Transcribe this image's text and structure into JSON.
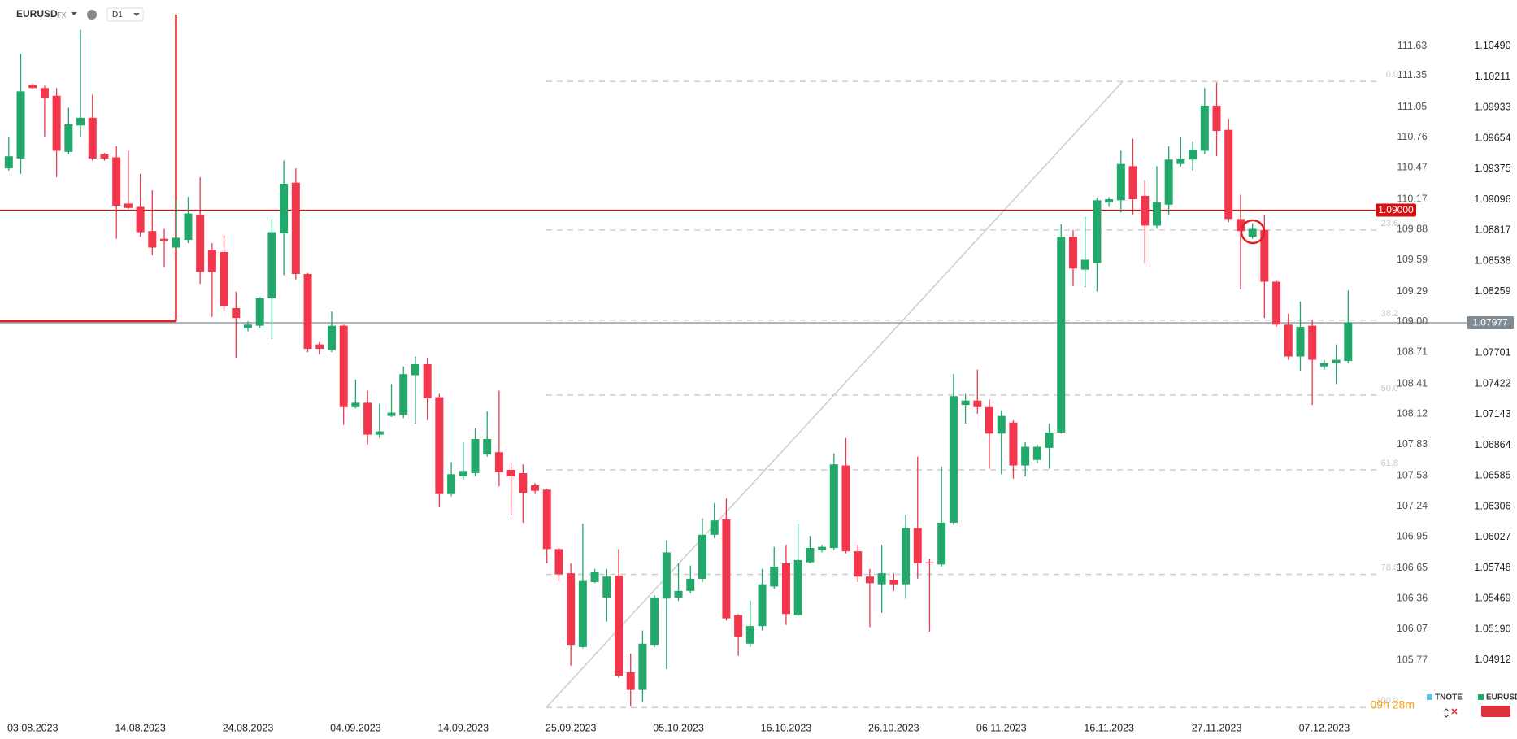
{
  "chart_data": {
    "type": "candlestick",
    "symbol": "EURUSD",
    "market": "FX",
    "interval": "D1",
    "timer": "09h 28m",
    "up_color": "#22a86b",
    "down_color": "#f2364b",
    "categories": [
      null,
      null,
      "03.08.2023",
      null,
      null,
      null,
      null,
      null,
      null,
      null,
      null,
      "14.08.2023",
      null,
      null,
      null,
      null,
      null,
      null,
      null,
      null,
      "24.08.2023",
      null,
      null,
      null,
      null,
      null,
      null,
      null,
      null,
      "04.09.2023",
      null,
      null,
      null,
      null,
      null,
      null,
      null,
      null,
      "14.09.2023",
      null,
      null,
      null,
      null,
      null,
      null,
      null,
      null,
      "25.09.2023",
      null,
      null,
      null,
      null,
      null,
      null,
      null,
      null,
      "05.10.2023",
      null,
      null,
      null,
      null,
      null,
      null,
      null,
      null,
      "16.10.2023",
      null,
      null,
      null,
      null,
      null,
      null,
      null,
      null,
      "26.10.2023",
      null,
      null,
      null,
      null,
      null,
      null,
      null,
      null,
      "06.11.2023",
      null,
      null,
      null,
      null,
      null,
      null,
      null,
      null,
      "16.11.2023",
      null,
      null,
      null,
      null,
      null,
      null,
      null,
      null,
      "27.11.2023",
      null,
      null,
      null,
      null,
      null,
      null,
      null,
      null,
      "07.12.2023",
      null,
      null
    ],
    "open": [
      1.0938,
      1.0947,
      1.1014,
      1.1011,
      1.1004,
      1.0953,
      1.0977,
      1.0984,
      1.0951,
      1.0948,
      1.0906,
      1.0903,
      1.0881,
      1.0874,
      1.0866,
      1.0873,
      1.0896,
      1.0864,
      1.0862,
      1.0811,
      1.0793,
      1.0795,
      1.082,
      1.0879,
      1.0925,
      1.0842,
      1.0778,
      1.0773,
      1.0795,
      1.0721,
      1.0725,
      1.0696,
      1.0713,
      1.0714,
      1.075,
      1.076,
      1.073,
      1.0642,
      1.0658,
      1.0661,
      1.0678,
      1.068,
      1.0664,
      1.0661,
      1.065,
      1.0646,
      1.0592,
      1.057,
      1.0503,
      1.0562,
      1.0548,
      1.0568,
      1.048,
      1.0464,
      1.0505,
      1.0547,
      1.0548,
      1.0554,
      1.0565,
      1.0605,
      1.0619,
      1.0532,
      1.0506,
      1.0522,
      1.0558,
      1.0579,
      1.0532,
      1.058,
      1.0591,
      1.0593,
      1.0668,
      1.059,
      1.0567,
      1.056,
      1.0564,
      1.056,
      1.0611,
      1.058,
      1.0578,
      1.0616,
      1.0723,
      1.0727,
      1.0721,
      1.0697,
      1.0707,
      1.0668,
      1.0673,
      1.0684,
      1.0698,
      1.0876,
      1.0846,
      1.0852,
      1.0907,
      1.0909,
      1.094,
      1.0913,
      1.0886,
      1.0905,
      1.0942,
      1.0946,
      1.0954,
      1.0995,
      1.0973,
      1.0892,
      1.0876,
      1.0882,
      1.0835,
      1.0796,
      1.0767,
      1.0795,
      1.0758,
      1.0761,
      1.0763
    ],
    "high": [
      1.0967,
      1.1042,
      1.1015,
      1.1013,
      1.1011,
      1.0993,
      1.1064,
      1.1005,
      1.0952,
      1.0958,
      1.0954,
      1.0933,
      1.0918,
      1.0883,
      1.0909,
      1.0912,
      1.093,
      1.087,
      1.0877,
      1.0826,
      1.0799,
      1.0821,
      1.0892,
      1.0945,
      1.0938,
      1.0843,
      1.078,
      1.0808,
      1.0796,
      1.0746,
      1.0736,
      1.0724,
      1.0742,
      1.0758,
      1.0767,
      1.0766,
      1.0733,
      1.0671,
      1.0689,
      1.0702,
      1.0717,
      1.0736,
      1.067,
      1.0669,
      1.0652,
      1.0647,
      1.0593,
      1.0579,
      1.0615,
      1.0574,
      1.0574,
      1.0592,
      1.0497,
      1.0518,
      1.055,
      1.06,
      1.0579,
      1.0577,
      1.062,
      1.0634,
      1.0638,
      1.0533,
      1.0545,
      1.0574,
      1.0594,
      1.0596,
      1.0615,
      1.0604,
      1.0596,
      1.0679,
      1.0693,
      1.0596,
      1.0574,
      1.0596,
      1.057,
      1.0623,
      1.0676,
      1.0583,
      1.0667,
      1.0751,
      1.0733,
      1.0755,
      1.0728,
      1.0718,
      1.0709,
      1.0689,
      1.0687,
      1.0706,
      1.0887,
      1.0882,
      1.0894,
      1.0911,
      1.0912,
      1.0954,
      1.0965,
      1.0927,
      1.094,
      1.0958,
      1.0967,
      1.0962,
      1.1011,
      1.1016,
      1.0983,
      1.0914,
      1.0888,
      1.0896,
      1.0836,
      1.0806,
      1.0817,
      1.08,
      1.0764,
      1.0778,
      1.0827
    ],
    "low": [
      1.0936,
      1.0933,
      1.101,
      1.0967,
      1.093,
      1.0951,
      1.0967,
      1.0945,
      1.0945,
      1.0874,
      1.0901,
      1.0876,
      1.0859,
      1.0848,
      1.0864,
      1.087,
      1.0833,
      1.0803,
      1.0808,
      1.0766,
      1.079,
      1.0793,
      1.0783,
      1.0841,
      1.0837,
      1.0771,
      1.0769,
      1.0771,
      1.0705,
      1.072,
      1.0687,
      1.0693,
      1.0712,
      1.0711,
      1.0706,
      1.0709,
      1.063,
      1.064,
      1.0655,
      1.0658,
      1.0676,
      1.0649,
      1.0623,
      1.0616,
      1.0642,
      1.0579,
      1.0563,
      1.0486,
      1.0502,
      1.0561,
      1.0526,
      1.0475,
      1.0449,
      1.0453,
      1.0503,
      1.0483,
      1.0545,
      1.0552,
      1.0562,
      1.0602,
      1.0527,
      1.0495,
      1.0503,
      1.0518,
      1.0556,
      1.0523,
      1.0531,
      1.0579,
      1.0589,
      1.0591,
      1.0588,
      1.0562,
      1.0521,
      1.0534,
      1.0554,
      1.0547,
      1.0565,
      1.0517,
      1.0576,
      1.0614,
      1.0706,
      1.0715,
      1.0665,
      1.066,
      1.0656,
      1.0658,
      1.067,
      1.0665,
      1.0697,
      1.0831,
      1.083,
      1.0826,
      1.0903,
      1.0898,
      1.0896,
      1.0852,
      1.0883,
      1.0896,
      1.094,
      1.0936,
      1.0951,
      1.0949,
      1.0889,
      1.0828,
      1.0874,
      1.0802,
      1.0794,
      1.0764,
      1.0754,
      1.0723,
      1.0755,
      1.0742,
      1.0761
    ],
    "close": [
      1.0949,
      1.1008,
      1.1011,
      1.1002,
      1.0954,
      1.0978,
      1.0984,
      1.0947,
      1.0947,
      1.0904,
      1.0902,
      1.088,
      1.0866,
      1.0872,
      1.0875,
      1.0897,
      1.0844,
      1.0844,
      1.0813,
      1.0802,
      1.0796,
      1.082,
      1.088,
      1.0924,
      1.0842,
      1.0774,
      1.0774,
      1.0795,
      1.0721,
      1.0725,
      1.0696,
      1.0699,
      1.0716,
      1.0751,
      1.076,
      1.0729,
      1.0642,
      1.066,
      1.0663,
      1.0692,
      1.0692,
      1.0662,
      1.0658,
      1.0643,
      1.0645,
      1.0592,
      1.0569,
      1.0505,
      1.0563,
      1.0571,
      1.0567,
      1.0477,
      1.0464,
      1.0506,
      1.0548,
      1.0589,
      1.0554,
      1.0565,
      1.0605,
      1.0618,
      1.0529,
      1.0512,
      1.0522,
      1.056,
      1.0576,
      1.0533,
      1.0582,
      1.0593,
      1.0594,
      1.0669,
      1.059,
      1.0567,
      1.0561,
      1.057,
      1.056,
      1.0611,
      1.0579,
      1.0579,
      1.0616,
      1.0731,
      1.0727,
      1.0721,
      1.0697,
      1.0713,
      1.0668,
      1.0685,
      1.0685,
      1.0698,
      1.0876,
      1.0847,
      1.0855,
      1.0909,
      1.091,
      1.0942,
      1.091,
      1.0886,
      1.0907,
      1.0946,
      1.0947,
      1.0955,
      1.0995,
      1.0972,
      1.0892,
      1.0881,
      1.0883,
      1.0835,
      1.0796,
      1.0767,
      1.0794,
      1.0764,
      1.0761,
      1.0764,
      1.0798
    ],
    "ylim": [
      1.0446,
      1.1091
    ],
    "yticks": [
      1.04912,
      {
        "value": 1.0519,
        "label": "1.05190"
      },
      1.05469,
      1.05748,
      1.06027,
      1.06306,
      1.06585,
      1.06864,
      1.07143,
      1.07422,
      1.07701,
      1.08259,
      1.08538,
      1.08817,
      1.09096,
      1.09375,
      1.09654,
      1.09933,
      1.10211,
      {
        "value": 1.1049,
        "label": "1.10490"
      }
    ],
    "y2lim": [
      105.3,
      112.07
    ],
    "y2ticks": [
      105.77,
      106.07,
      106.36,
      106.65,
      106.95,
      107.24,
      107.53,
      107.83,
      108.12,
      108.41,
      108.71,
      {
        "value": 109,
        "label": "109.00"
      },
      109.29,
      109.59,
      109.88,
      110.17,
      110.47,
      110.76,
      111.05,
      111.35,
      111.63
    ],
    "fib_levels": [
      {
        "label": "0.0",
        "value": 1.1017
      },
      {
        "label": "23.6",
        "value": 1.0882
      },
      {
        "label": "38.2",
        "value": 1.08
      },
      {
        "label": "50.0",
        "value": 1.0732
      },
      {
        "label": "61.8",
        "value": 1.0664
      },
      {
        "label": "78.6",
        "value": 1.0569
      },
      {
        "label": "100.0",
        "value": 1.0448
      }
    ],
    "alert_line": {
      "value": 1.09,
      "label": "1.09000",
      "color": "#d01010"
    },
    "price_line": {
      "value": 1.07977,
      "label": "1.07977",
      "color": "#7f8a93"
    },
    "legend": [
      {
        "name": "TNOTE",
        "color": "#5bc0eb"
      },
      {
        "name": "EURUSD",
        "color": "#22a86b"
      }
    ]
  }
}
